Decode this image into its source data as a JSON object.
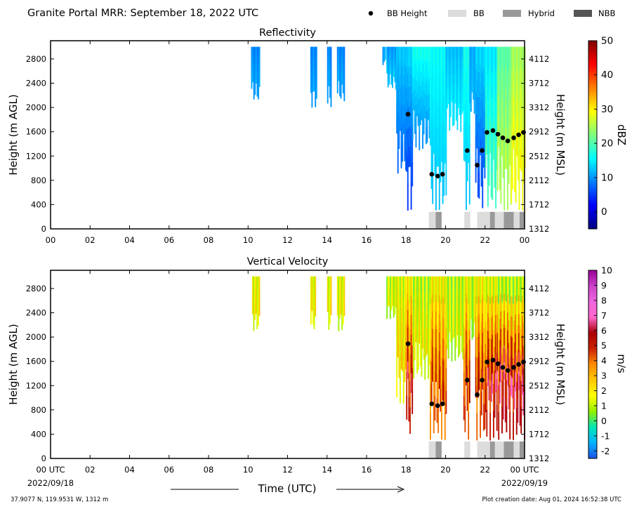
{
  "title": "Granite Portal MRR:  September 18, 2022 UTC",
  "legend": {
    "placement": "top-right",
    "items": [
      {
        "label": "BB Height",
        "marker": "dot",
        "color": "#000000"
      },
      {
        "label": "BB",
        "marker": "swatch",
        "color": "#dcdcdc"
      },
      {
        "label": "Hybrid",
        "marker": "swatch",
        "color": "#999999"
      },
      {
        "label": "NBB",
        "marker": "swatch",
        "color": "#555555"
      }
    ]
  },
  "x_axis": {
    "label": "Time (UTC)",
    "range_hours": [
      0,
      24
    ],
    "ticks": [
      {
        "hour": 0,
        "top_label": "00",
        "bottom_label": "00 UTC"
      },
      {
        "hour": 2,
        "top_label": "02",
        "bottom_label": "02"
      },
      {
        "hour": 4,
        "top_label": "04",
        "bottom_label": "04"
      },
      {
        "hour": 6,
        "top_label": "06",
        "bottom_label": "06"
      },
      {
        "hour": 8,
        "top_label": "08",
        "bottom_label": "08"
      },
      {
        "hour": 10,
        "top_label": "10",
        "bottom_label": "10"
      },
      {
        "hour": 12,
        "top_label": "12",
        "bottom_label": "12"
      },
      {
        "hour": 14,
        "top_label": "14",
        "bottom_label": "14"
      },
      {
        "hour": 16,
        "top_label": "16",
        "bottom_label": "16"
      },
      {
        "hour": 18,
        "top_label": "18",
        "bottom_label": "18"
      },
      {
        "hour": 20,
        "top_label": "20",
        "bottom_label": "20"
      },
      {
        "hour": 22,
        "top_label": "22",
        "bottom_label": "22"
      },
      {
        "hour": 24,
        "top_label": "00",
        "bottom_label": "00 UTC"
      }
    ],
    "start_date": "2022/09/18",
    "end_date": "2022/09/19"
  },
  "footer": {
    "location": "37.9077 N, 119.9531 W, 1312 m",
    "creation": "Plot creation date: Aug 01, 2024 16:52:38 UTC"
  },
  "chart_data": [
    {
      "type": "heatmap",
      "title": "Reflectivity",
      "ylabel": "Height (m AGL)",
      "ylabel_right": "Height (m MSL)",
      "ylim": [
        0,
        3100
      ],
      "yticks": [
        0,
        400,
        800,
        1200,
        1600,
        2000,
        2400,
        2800
      ],
      "yticks_right": [
        "1312",
        "1712",
        "2112",
        "2512",
        "2912",
        "3312",
        "3712",
        "4112"
      ],
      "colorbar": {
        "label": "dBZ",
        "min": -5,
        "max": 50,
        "ticks": [
          0,
          10,
          20,
          30,
          40,
          50
        ],
        "tick_labels": [
          "0",
          "10",
          "20",
          "30",
          "40",
          "50"
        ],
        "colors": [
          "#00007f",
          "#0000ff",
          "#007fff",
          "#00ffff",
          "#7fff7f",
          "#ffff00",
          "#ff7f00",
          "#ff0000",
          "#7f0000"
        ]
      },
      "columns": [
        {
          "t0": 10.15,
          "t1": 10.55,
          "h0": 2100,
          "h1": 3000,
          "v0": 11,
          "v1": 9
        },
        {
          "t0": 13.15,
          "t1": 13.45,
          "h0": 2000,
          "h1": 3000,
          "v0": 11,
          "v1": 9
        },
        {
          "t0": 14.0,
          "t1": 14.2,
          "h0": 2000,
          "h1": 3000,
          "v0": 11,
          "v1": 9
        },
        {
          "t0": 14.5,
          "t1": 14.85,
          "h0": 2100,
          "h1": 3000,
          "v0": 11,
          "v1": 9
        },
        {
          "t0": 16.8,
          "t1": 16.95,
          "h0": 2700,
          "h1": 3000,
          "v0": 11,
          "v1": 11
        },
        {
          "t0": 17.0,
          "t1": 17.5,
          "h0": 2300,
          "h1": 3000,
          "v0": 13,
          "v1": 10
        },
        {
          "t0": 17.5,
          "t1": 18.0,
          "h0": 900,
          "h1": 3000,
          "v0": 8,
          "v1": 13
        },
        {
          "t0": 18.0,
          "t1": 18.3,
          "h0": 300,
          "h1": 3000,
          "v0": 5,
          "v1": 14
        },
        {
          "t0": 18.3,
          "t1": 19.2,
          "h0": 1300,
          "h1": 3000,
          "v0": 10,
          "v1": 17
        },
        {
          "t0": 19.2,
          "t1": 20.0,
          "h0": 300,
          "h1": 3000,
          "v0": 13,
          "v1": 16
        },
        {
          "t0": 20.0,
          "t1": 20.9,
          "h0": 1600,
          "h1": 3000,
          "v0": 15,
          "v1": 12
        },
        {
          "t0": 20.9,
          "t1": 21.2,
          "h0": 300,
          "h1": 3000,
          "v0": 13,
          "v1": 17
        },
        {
          "t0": 21.2,
          "t1": 21.5,
          "h0": 1900,
          "h1": 3000,
          "v0": 12,
          "v1": 11
        },
        {
          "t0": 21.5,
          "t1": 22.0,
          "h0": 300,
          "h1": 3000,
          "v0": 6,
          "v1": 14
        },
        {
          "t0": 22.0,
          "t1": 22.6,
          "h0": 300,
          "h1": 3000,
          "v0": 20,
          "v1": 14
        },
        {
          "t0": 22.6,
          "t1": 23.3,
          "h0": 300,
          "h1": 3000,
          "v0": 26,
          "v1": 20
        },
        {
          "t0": 23.3,
          "t1": 24.0,
          "h0": 300,
          "h1": 3000,
          "v0": 30,
          "v1": 24
        }
      ]
    },
    {
      "type": "heatmap",
      "title": "Vertical Velocity",
      "ylabel": "Height (m AGL)",
      "ylabel_right": "Height (m MSL)",
      "ylim": [
        0,
        3100
      ],
      "yticks": [
        0,
        400,
        800,
        1200,
        1600,
        2000,
        2400,
        2800
      ],
      "yticks_right": [
        "1312",
        "1712",
        "2112",
        "2512",
        "2912",
        "3312",
        "3712",
        "4112"
      ],
      "colorbar": {
        "label": "m/s",
        "min": -2.5,
        "max": 10,
        "ticks": [
          -2,
          -1,
          0,
          1,
          2,
          3,
          4,
          5,
          6,
          7,
          8,
          9,
          10
        ],
        "tick_labels": [
          "-2",
          "-1",
          "0",
          "1",
          "2",
          "3",
          "4",
          "5",
          "6",
          "7",
          "8",
          "9",
          "10"
        ],
        "colors": [
          "#1e50e6",
          "#00b4ff",
          "#00e6b4",
          "#96f000",
          "#ffff00",
          "#ffc800",
          "#ff8c00",
          "#cc2200",
          "#aa0000",
          "#ff66cc",
          "#ee66dd",
          "#cc44cc",
          "#990099"
        ]
      },
      "columns": [
        {
          "t0": 10.2,
          "t1": 10.55,
          "h0": 2100,
          "h1": 3000,
          "v0": 2.0,
          "v1": 1.5
        },
        {
          "t0": 13.15,
          "t1": 13.4,
          "h0": 2100,
          "h1": 3000,
          "v0": 2.0,
          "v1": 1.5
        },
        {
          "t0": 14.0,
          "t1": 14.2,
          "h0": 2100,
          "h1": 3000,
          "v0": 2.0,
          "v1": 1.5
        },
        {
          "t0": 14.5,
          "t1": 14.85,
          "h0": 2100,
          "h1": 3000,
          "v0": 1.8,
          "v1": 1.5
        },
        {
          "t0": 17.0,
          "t1": 17.5,
          "h0": 2300,
          "h1": 3000,
          "v0": 1.5,
          "v1": 1.2
        },
        {
          "t0": 17.5,
          "t1": 18.0,
          "h0": 900,
          "h1": 3000,
          "v0": 2.5,
          "v1": 1.3
        },
        {
          "t0": 18.0,
          "t1": 18.3,
          "h0": 300,
          "h1": 3000,
          "v0": 6.0,
          "v1": 1.5
        },
        {
          "t0": 18.3,
          "t1": 19.2,
          "h0": 1300,
          "h1": 3000,
          "v0": 2.0,
          "v1": 1.0
        },
        {
          "t0": 19.2,
          "t1": 20.0,
          "h0": 300,
          "h1": 3000,
          "v0": 5.0,
          "v1": 1.5
        },
        {
          "t0": 20.0,
          "t1": 20.9,
          "h0": 1600,
          "h1": 3000,
          "v0": 1.5,
          "v1": 1.0
        },
        {
          "t0": 20.9,
          "t1": 21.2,
          "h0": 300,
          "h1": 3000,
          "v0": 5.5,
          "v1": 1.5
        },
        {
          "t0": 21.2,
          "t1": 21.5,
          "h0": 1900,
          "h1": 3000,
          "v0": 1.0,
          "v1": 1.0
        },
        {
          "t0": 21.5,
          "t1": 22.0,
          "h0": 300,
          "h1": 3000,
          "v0": 5.5,
          "v1": 1.5
        },
        {
          "t0": 22.0,
          "t1": 22.6,
          "h0": 300,
          "h1": 3000,
          "v0": 6.5,
          "v1": 1.0
        },
        {
          "t0": 22.6,
          "t1": 24.0,
          "h0": 300,
          "h1": 3000,
          "v0": 7.0,
          "v1": 0.5
        }
      ]
    }
  ],
  "bright_band": {
    "points": [
      {
        "hour": 18.1,
        "height": 1890
      },
      {
        "hour": 19.3,
        "height": 900
      },
      {
        "hour": 19.6,
        "height": 870
      },
      {
        "hour": 19.85,
        "height": 900
      },
      {
        "hour": 21.1,
        "height": 1290
      },
      {
        "hour": 21.6,
        "height": 1050
      },
      {
        "hour": 21.85,
        "height": 1290
      },
      {
        "hour": 22.1,
        "height": 1590
      },
      {
        "hour": 22.4,
        "height": 1620
      },
      {
        "hour": 22.65,
        "height": 1560
      },
      {
        "hour": 22.9,
        "height": 1500
      },
      {
        "hour": 23.15,
        "height": 1450
      },
      {
        "hour": 23.45,
        "height": 1500
      },
      {
        "hour": 23.7,
        "height": 1550
      },
      {
        "hour": 23.95,
        "height": 1590
      }
    ],
    "classification": [
      {
        "t0": 19.15,
        "t1": 19.5,
        "class": "BB"
      },
      {
        "t0": 19.5,
        "t1": 19.8,
        "class": "Hybrid"
      },
      {
        "t0": 20.95,
        "t1": 21.25,
        "class": "BB"
      },
      {
        "t0": 21.6,
        "t1": 22.25,
        "class": "BB"
      },
      {
        "t0": 22.25,
        "t1": 22.5,
        "class": "Hybrid"
      },
      {
        "t0": 22.5,
        "t1": 22.95,
        "class": "BB"
      },
      {
        "t0": 22.95,
        "t1": 23.45,
        "class": "Hybrid"
      },
      {
        "t0": 23.45,
        "t1": 23.75,
        "class": "BB"
      },
      {
        "t0": 23.75,
        "t1": 24.0,
        "class": "Hybrid"
      }
    ]
  }
}
